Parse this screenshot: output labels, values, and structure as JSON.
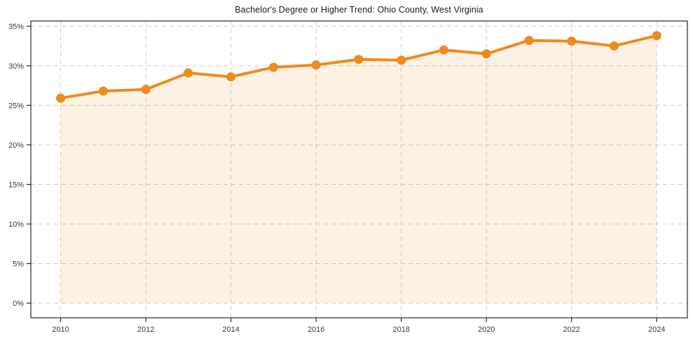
{
  "chart_data": {
    "type": "area",
    "title": "Bachelor's Degree or Higher Trend: Ohio County, West Virginia",
    "x": [
      2010,
      2011,
      2012,
      2013,
      2014,
      2015,
      2016,
      2017,
      2018,
      2019,
      2020,
      2021,
      2022,
      2023,
      2024
    ],
    "series": [
      {
        "name": "Bachelor's degree or higher (%)",
        "values": [
          25.9,
          26.8,
          27.0,
          29.1,
          28.6,
          29.8,
          30.1,
          30.8,
          30.7,
          32.0,
          31.5,
          33.2,
          33.1,
          32.5,
          33.8
        ]
      }
    ],
    "xlabel": "",
    "ylabel": "",
    "xlim": [
      2009.3,
      2024.72
    ],
    "ylim": [
      -1.85,
      35.65
    ],
    "xticks": [
      2010,
      2012,
      2014,
      2016,
      2018,
      2020,
      2022,
      2024
    ],
    "xtick_labels": [
      "2010",
      "2012",
      "2014",
      "2016",
      "2018",
      "2020",
      "2022",
      "2024"
    ],
    "yticks": [
      0,
      5,
      10,
      15,
      20,
      25,
      30,
      35
    ],
    "ytick_labels": [
      "0%",
      "5%",
      "10%",
      "15%",
      "20%",
      "25%",
      "30%",
      "35%"
    ],
    "grid": true,
    "grid_style": "dashed",
    "legend": "none",
    "area_baseline": 0,
    "marker": "circle",
    "colors": {
      "line": "#ef8a1d",
      "area_fill": "rgba(239,138,29,0.12)",
      "grid": "#cccccc",
      "spine": "#262626",
      "tick_text": "#3a3a3a",
      "title_text": "#1a1a1a",
      "background": "#ffffff"
    }
  }
}
